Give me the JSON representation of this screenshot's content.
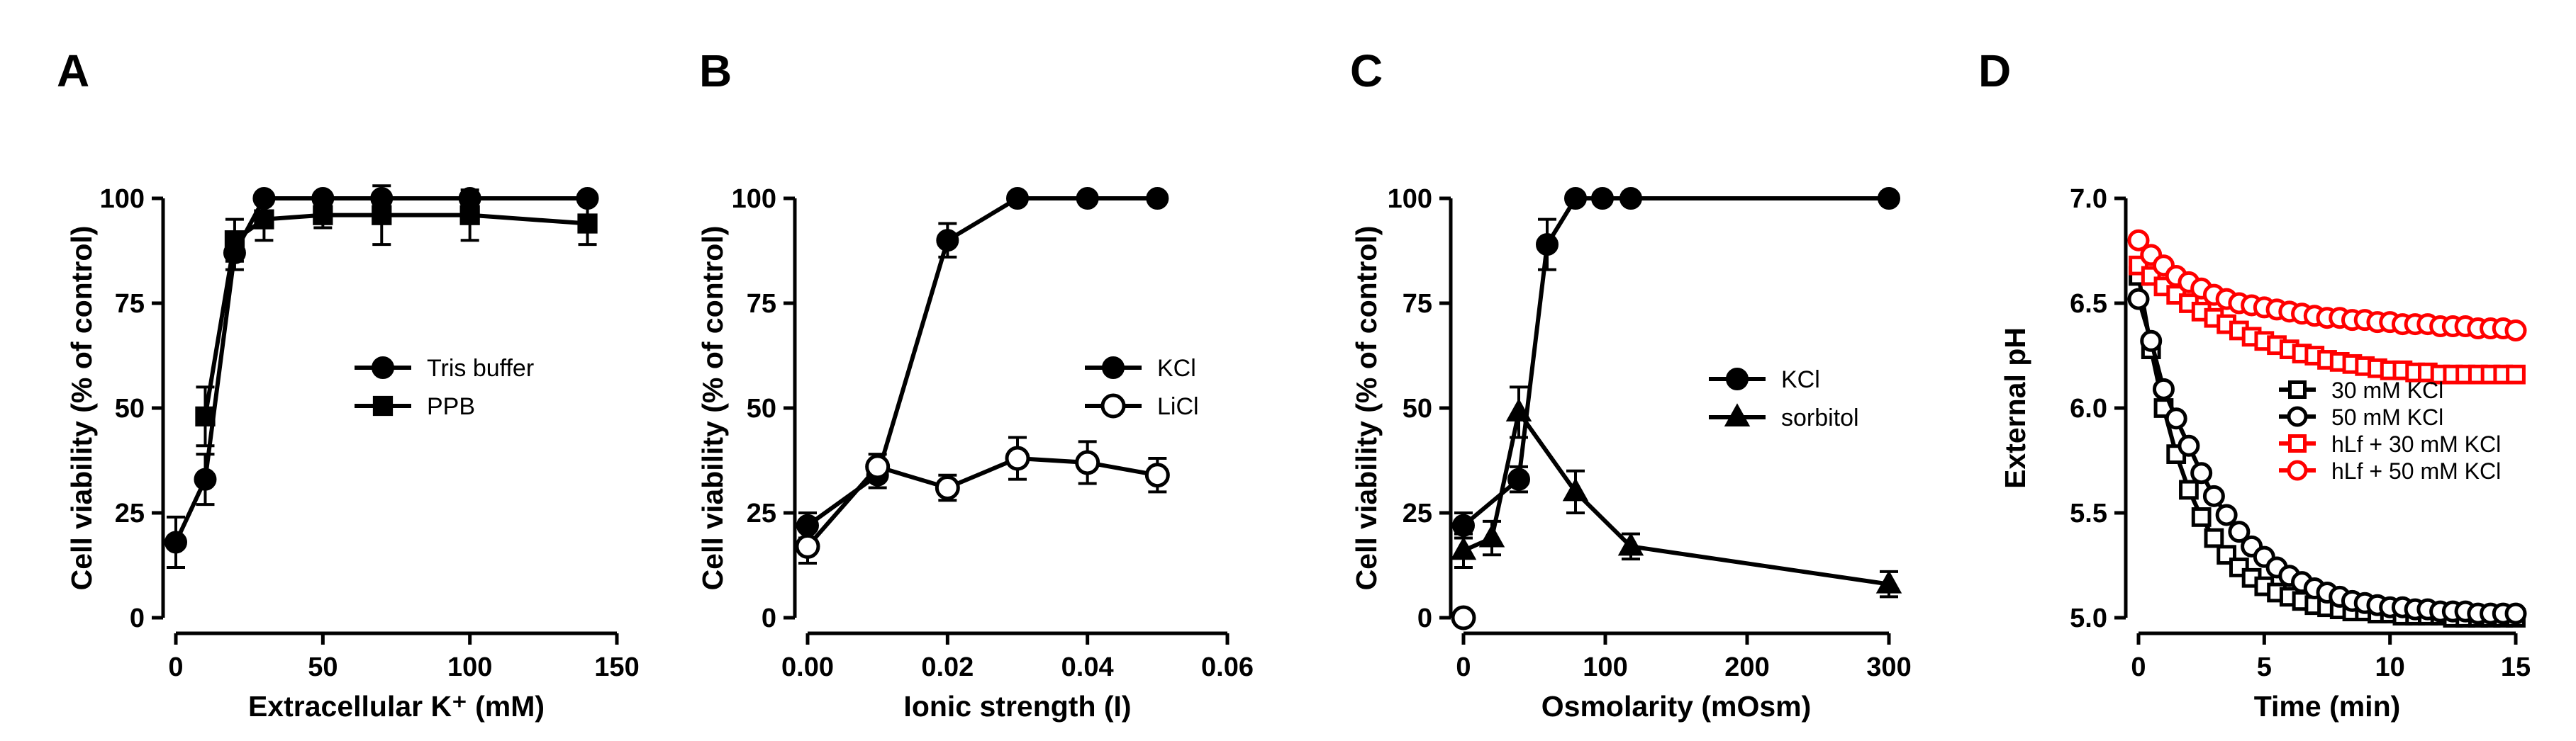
{
  "chart_data": [
    {
      "panel": "A",
      "type": "line",
      "xlabel": "Extracellular K⁺ (mM)",
      "ylabel": "Cell viability (% of control)",
      "xlim": [
        0,
        150
      ],
      "ylim": [
        0,
        100
      ],
      "xticks": [
        "0",
        "50",
        "100",
        "150"
      ],
      "yticks": [
        "0",
        "25",
        "50",
        "75",
        "100"
      ],
      "legend_position": "right",
      "series": [
        {
          "name": "Tris buffer",
          "marker": "circle",
          "fill": "filled",
          "x": [
            0,
            10,
            20,
            30,
            50,
            70,
            100,
            140
          ],
          "y": [
            18,
            33,
            87,
            100,
            100,
            100,
            100,
            100
          ],
          "err": [
            6,
            6,
            4,
            0,
            0,
            0,
            0,
            0
          ]
        },
        {
          "name": "PPB",
          "marker": "square",
          "fill": "filled",
          "x": [
            10,
            20,
            30,
            50,
            70,
            100,
            140
          ],
          "y": [
            48,
            90,
            95,
            96,
            96,
            96,
            94
          ],
          "err": [
            7,
            5,
            5,
            3,
            7,
            6,
            5
          ]
        }
      ]
    },
    {
      "panel": "B",
      "type": "line",
      "xlabel": "Ionic strength (I)",
      "ylabel": "Cell viability (% of control)",
      "xlim": [
        0,
        0.06
      ],
      "ylim": [
        0,
        100
      ],
      "xticks": [
        "0.00",
        "0.02",
        "0.04",
        "0.06"
      ],
      "yticks": [
        "0",
        "25",
        "50",
        "75",
        "100"
      ],
      "legend_position": "right",
      "series": [
        {
          "name": "KCl",
          "marker": "circle",
          "fill": "filled",
          "x": [
            0,
            0.01,
            0.02,
            0.03,
            0.04,
            0.05
          ],
          "y": [
            22,
            34,
            90,
            100,
            100,
            100
          ],
          "err": [
            3,
            3,
            4,
            0,
            0,
            0
          ]
        },
        {
          "name": "LiCl",
          "marker": "circle",
          "fill": "open",
          "x": [
            0,
            0.01,
            0.02,
            0.03,
            0.04,
            0.05
          ],
          "y": [
            17,
            36,
            31,
            38,
            37,
            34
          ],
          "err": [
            4,
            3,
            3,
            5,
            5,
            4
          ]
        }
      ]
    },
    {
      "panel": "C",
      "type": "line",
      "xlabel": "Osmolarity (mOsm)",
      "ylabel": "Cell viability (% of control)",
      "xlim": [
        0,
        300
      ],
      "ylim": [
        0,
        100
      ],
      "xticks": [
        "0",
        "100",
        "200",
        "300"
      ],
      "yticks": [
        "0",
        "25",
        "50",
        "75",
        "100"
      ],
      "legend_position": "right",
      "series": [
        {
          "name": "KCl",
          "marker": "circle",
          "fill": "filled",
          "x": [
            0,
            39,
            59,
            79,
            98,
            118,
            300
          ],
          "y": [
            22,
            33,
            89,
            100,
            100,
            100,
            100
          ],
          "err": [
            3,
            3,
            6,
            0,
            0,
            0,
            0
          ]
        },
        {
          "name": "sorbitol",
          "marker": "triangle",
          "fill": "filled",
          "x": [
            0,
            20,
            39,
            79,
            118,
            300
          ],
          "y": [
            16,
            19,
            49,
            30,
            17,
            8
          ],
          "err": [
            4,
            4,
            6,
            5,
            3,
            3
          ]
        },
        {
          "name": "",
          "marker": "circle",
          "fill": "open",
          "x": [
            0
          ],
          "y": [
            0
          ],
          "err": [
            0
          ]
        }
      ]
    },
    {
      "panel": "D",
      "type": "line",
      "xlabel": "Time (min)",
      "ylabel": "External pH",
      "xlim": [
        0,
        15
      ],
      "ylim": [
        5.0,
        7.0
      ],
      "xticks": [
        "0",
        "5",
        "10",
        "15"
      ],
      "yticks": [
        "5.0",
        "5.5",
        "6.0",
        "6.5",
        "7.0"
      ],
      "legend_position": "right",
      "series": [
        {
          "name": "30 mM KCl",
          "marker": "square",
          "fill": "open",
          "color": "#000000",
          "x": [
            0,
            0.5,
            1,
            1.5,
            2,
            2.5,
            3,
            3.5,
            4,
            4.5,
            5,
            5.5,
            6,
            6.5,
            7,
            7.5,
            8,
            8.5,
            9,
            9.5,
            10,
            10.5,
            11,
            11.5,
            12,
            12.5,
            13,
            13.5,
            14,
            14.5,
            15
          ],
          "y": [
            6.63,
            6.28,
            6.0,
            5.78,
            5.61,
            5.48,
            5.38,
            5.3,
            5.24,
            5.19,
            5.15,
            5.12,
            5.1,
            5.08,
            5.06,
            5.05,
            5.04,
            5.03,
            5.03,
            5.02,
            5.02,
            5.01,
            5.01,
            5.01,
            5.01,
            5.0,
            5.0,
            5.0,
            5.0,
            5.0,
            5.0
          ]
        },
        {
          "name": "50 mM KCl",
          "marker": "circle",
          "fill": "open",
          "color": "#000000",
          "x": [
            0,
            0.5,
            1,
            1.5,
            2,
            2.5,
            3,
            3.5,
            4,
            4.5,
            5,
            5.5,
            6,
            6.5,
            7,
            7.5,
            8,
            8.5,
            9,
            9.5,
            10,
            10.5,
            11,
            11.5,
            12,
            12.5,
            13,
            13.5,
            14,
            14.5,
            15
          ],
          "y": [
            6.52,
            6.32,
            6.09,
            5.95,
            5.82,
            5.69,
            5.58,
            5.49,
            5.41,
            5.34,
            5.29,
            5.24,
            5.2,
            5.17,
            5.14,
            5.12,
            5.1,
            5.08,
            5.07,
            5.06,
            5.05,
            5.05,
            5.04,
            5.04,
            5.03,
            5.03,
            5.03,
            5.02,
            5.02,
            5.02,
            5.02
          ]
        },
        {
          "name": "hLf + 30 mM KCl",
          "marker": "square",
          "fill": "open",
          "color": "#ff0000",
          "x": [
            0,
            0.5,
            1,
            1.5,
            2,
            2.5,
            3,
            3.5,
            4,
            4.5,
            5,
            5.5,
            6,
            6.5,
            7,
            7.5,
            8,
            8.5,
            9,
            9.5,
            10,
            10.5,
            11,
            11.5,
            12,
            12.5,
            13,
            13.5,
            14,
            14.5,
            15
          ],
          "y": [
            6.68,
            6.63,
            6.58,
            6.54,
            6.5,
            6.46,
            6.43,
            6.4,
            6.37,
            6.34,
            6.32,
            6.3,
            6.28,
            6.26,
            6.25,
            6.23,
            6.22,
            6.21,
            6.2,
            6.19,
            6.18,
            6.18,
            6.17,
            6.17,
            6.16,
            6.16,
            6.16,
            6.16,
            6.16,
            6.16,
            6.16
          ]
        },
        {
          "name": "hLf + 50 mM KCl",
          "marker": "circle",
          "fill": "open",
          "color": "#ff0000",
          "x": [
            0,
            0.5,
            1,
            1.5,
            2,
            2.5,
            3,
            3.5,
            4,
            4.5,
            5,
            5.5,
            6,
            6.5,
            7,
            7.5,
            8,
            8.5,
            9,
            9.5,
            10,
            10.5,
            11,
            11.5,
            12,
            12.5,
            13,
            13.5,
            14,
            14.5,
            15
          ],
          "y": [
            6.8,
            6.73,
            6.68,
            6.63,
            6.6,
            6.57,
            6.54,
            6.52,
            6.5,
            6.49,
            6.48,
            6.47,
            6.46,
            6.45,
            6.44,
            6.43,
            6.43,
            6.42,
            6.42,
            6.41,
            6.41,
            6.4,
            6.4,
            6.4,
            6.39,
            6.39,
            6.39,
            6.38,
            6.38,
            6.38,
            6.37
          ]
        }
      ]
    }
  ]
}
